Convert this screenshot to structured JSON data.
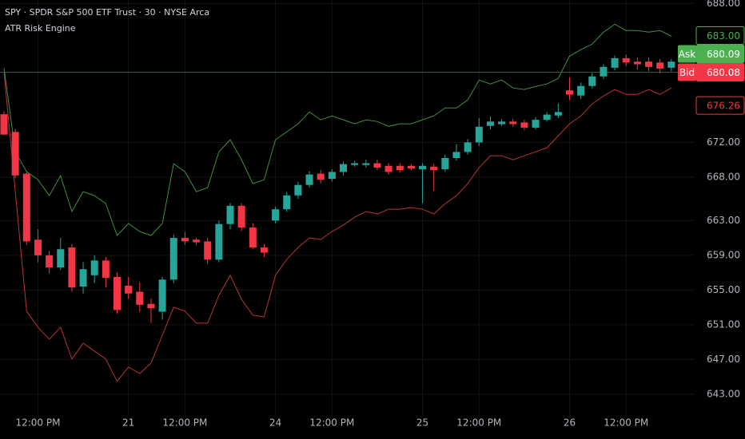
{
  "chart_data": {
    "type": "candlestick",
    "title": "SPY · SPDR S&P 500 ETF Trust · 30 · NYSE Arca",
    "subtitle": "ATR Risk Engine",
    "categories": [
      null,
      null,
      null,
      "12:00 PM",
      null,
      null,
      null,
      null,
      null,
      null,
      null,
      "21",
      null,
      null,
      null,
      null,
      "12:00 PM",
      null,
      null,
      null,
      null,
      null,
      null,
      null,
      "24",
      null,
      null,
      null,
      null,
      "12:00 PM",
      null,
      null,
      null,
      null,
      null,
      null,
      null,
      "25",
      null,
      null,
      null,
      null,
      "12:00 PM",
      null,
      null,
      null,
      null,
      null,
      null,
      null,
      "26",
      null,
      null,
      null,
      null,
      "12:00 PM",
      null,
      null,
      null,
      null
    ],
    "open": [
      675.24,
      673.2,
      668.4,
      660.8,
      659.0,
      657.6,
      659.9,
      655.4,
      656.7,
      658.4,
      656.5,
      655.5,
      654.8,
      653.4,
      652.5,
      656.2,
      661.0,
      660.8,
      660.6,
      658.5,
      662.6,
      664.7,
      662.2,
      659.9,
      663.0,
      664.3,
      665.9,
      667.1,
      668.4,
      667.8,
      668.6,
      669.4,
      669.4,
      669.6,
      669.3,
      669.3,
      669.3,
      668.9,
      669.2,
      668.9,
      670.2,
      670.9,
      672.0,
      673.9,
      674.1,
      674.4,
      674.3,
      673.7,
      674.6,
      675.1,
      678.0,
      677.4,
      678.5,
      679.6,
      680.6,
      681.7,
      681.3,
      681.3,
      681.2,
      680.6
    ],
    "high": [
      675.6,
      673.6,
      668.6,
      662.0,
      659.5,
      661.0,
      660.3,
      658.2,
      659.0,
      658.8,
      657.0,
      656.5,
      655.9,
      654.0,
      656.5,
      661.4,
      661.7,
      661.0,
      661.0,
      663.0,
      665.0,
      665.0,
      662.7,
      660.3,
      664.6,
      666.3,
      667.5,
      668.7,
      668.8,
      668.9,
      669.8,
      669.9,
      670.0,
      670.0,
      669.6,
      669.6,
      669.5,
      669.6,
      669.5,
      670.6,
      671.8,
      672.4,
      674.8,
      675.0,
      674.7,
      674.7,
      674.6,
      674.9,
      675.5,
      676.5,
      679.5,
      678.9,
      680.0,
      681.0,
      682.0,
      682.1,
      681.8,
      681.8,
      681.6,
      681.6
    ],
    "low": [
      672.9,
      667.9,
      660.2,
      658.2,
      656.9,
      657.3,
      654.8,
      654.6,
      655.8,
      655.3,
      652.3,
      654.0,
      652.5,
      651.2,
      651.6,
      655.8,
      660.2,
      660.2,
      658.0,
      658.2,
      662.0,
      661.8,
      659.7,
      658.8,
      662.7,
      664.0,
      665.5,
      666.8,
      667.3,
      667.5,
      668.2,
      669.2,
      669.1,
      668.8,
      668.3,
      668.5,
      668.8,
      665.0,
      666.4,
      668.6,
      669.9,
      670.6,
      671.6,
      673.5,
      673.9,
      673.8,
      673.4,
      673.5,
      674.4,
      674.8,
      676.9,
      677.0,
      678.2,
      679.3,
      680.3,
      680.8,
      680.4,
      680.2,
      680.0,
      680.2
    ],
    "close": [
      672.9,
      668.2,
      660.6,
      659.0,
      657.6,
      659.7,
      655.3,
      657.4,
      658.4,
      656.4,
      652.7,
      654.6,
      653.3,
      652.9,
      656.2,
      661.0,
      660.6,
      660.5,
      658.5,
      662.6,
      664.7,
      662.2,
      659.9,
      659.3,
      664.3,
      665.9,
      667.1,
      668.3,
      667.7,
      668.6,
      669.5,
      669.6,
      669.6,
      669.1,
      668.6,
      668.8,
      669.0,
      669.3,
      668.8,
      670.2,
      670.9,
      672.0,
      673.8,
      674.4,
      674.4,
      674.1,
      673.7,
      674.6,
      675.2,
      675.5,
      677.5,
      678.5,
      679.6,
      680.7,
      681.7,
      681.2,
      681.0,
      680.7,
      680.5,
      681.3
    ],
    "up_color": "#26a69a",
    "down_color": "#f23645",
    "lines": [
      {
        "color": "#3f8f43",
        "values": [
          680.56,
          670.92,
          668.63,
          667.71,
          665.87,
          668.17,
          664.04,
          666.33,
          665.87,
          664.95,
          661.28,
          662.66,
          661.74,
          661.28,
          662.66,
          669.55,
          668.63,
          666.33,
          666.79,
          670.92,
          672.3,
          670.0,
          667.25,
          667.71,
          672.3,
          673.22,
          674.14,
          675.51,
          674.6,
          675.05,
          674.6,
          674.14,
          674.6,
          674.41,
          673.86,
          674.14,
          674.14,
          674.6,
          675.05,
          675.97,
          675.97,
          676.89,
          679.19,
          678.73,
          679.19,
          678.27,
          678.09,
          678.45,
          678.73,
          679.37,
          681.94,
          682.68,
          683.32,
          684.7,
          685.61,
          684.88,
          684.88,
          684.7,
          684.88,
          684.24
        ]
      },
      {
        "color": "#b83434",
        "values": [
          680.1,
          666.33,
          652.56,
          650.72,
          649.34,
          650.72,
          647.05,
          648.88,
          647.97,
          647.05,
          644.48,
          646.13,
          645.39,
          646.59,
          649.8,
          653.02,
          652.56,
          651.18,
          651.18,
          654.39,
          656.69,
          653.93,
          652.1,
          651.91,
          656.69,
          658.53,
          659.9,
          661.0,
          660.82,
          661.74,
          662.47,
          663.39,
          664.04,
          663.76,
          664.31,
          664.31,
          664.5,
          664.31,
          663.76,
          664.95,
          665.87,
          667.25,
          669.09,
          670.46,
          670.46,
          670.0,
          670.46,
          670.92,
          671.38,
          672.76,
          674.14,
          675.05,
          676.43,
          677.35,
          678.09,
          677.53,
          677.53,
          678.09,
          677.53,
          678.27
        ]
      }
    ],
    "ylim": [
      640.6,
      688.4
    ],
    "yticks": [
      {
        "value": 688,
        "label": "688.00"
      },
      {
        "value": 672,
        "label": "672.00"
      },
      {
        "value": 668,
        "label": "668.00"
      },
      {
        "value": 663,
        "label": "663.00"
      },
      {
        "value": 659,
        "label": "659.00"
      },
      {
        "value": 655,
        "label": "655.00"
      },
      {
        "value": 651,
        "label": "651.00"
      },
      {
        "value": 647,
        "label": "647.00"
      },
      {
        "value": 643,
        "label": "643.00"
      }
    ],
    "grid": true,
    "price_tags": [
      {
        "value": 683,
        "label": "683.00",
        "color": "#4caf50",
        "style": "outline"
      },
      {
        "prefix": "Ask",
        "value": 680.09,
        "label": "680.09",
        "color": "#4caf50",
        "style": "filled"
      },
      {
        "prefix": "Bid",
        "value": 680.08,
        "label": "680.08",
        "color": "#f23645",
        "style": "filled"
      },
      {
        "value": 676.26,
        "label": "676.26",
        "color": "#f23645",
        "style": "outline"
      }
    ],
    "price_line": {
      "value": 680.08,
      "color": "#3e5c3f"
    }
  }
}
